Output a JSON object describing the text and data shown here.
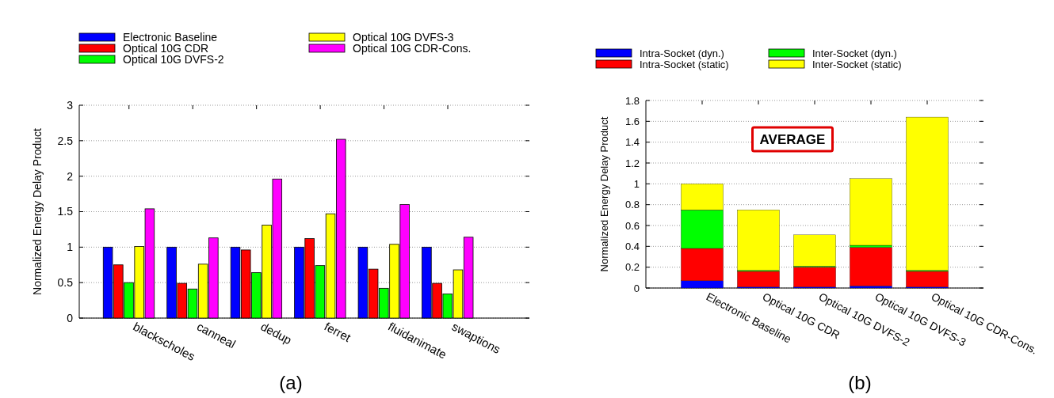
{
  "chart_data": [
    {
      "type": "bar",
      "ylabel": "Normalized Energy Delay Product",
      "categories": [
        "blackscholes",
        "canneal",
        "dedup",
        "ferret",
        "fluidanimate",
        "swaptions"
      ],
      "series": [
        {
          "name": "Electronic Baseline",
          "color": "#0000ff",
          "values": [
            1,
            1,
            1,
            1,
            1,
            1
          ]
        },
        {
          "name": "Optical 10G CDR",
          "color": "#ff0000",
          "values": [
            0.75,
            0.49,
            0.96,
            1.12,
            0.69,
            0.49
          ]
        },
        {
          "name": "Optical 10G DVFS-2",
          "color": "#00ff00",
          "values": [
            0.5,
            0.41,
            0.64,
            0.74,
            0.42,
            0.34
          ]
        },
        {
          "name": "Optical 10G DVFS-3",
          "color": "#ffff00",
          "values": [
            1.01,
            0.76,
            1.31,
            1.47,
            1.04,
            0.68
          ]
        },
        {
          "name": "Optical 10G CDR-Cons.",
          "color": "#ff00ff",
          "values": [
            1.54,
            1.13,
            1.96,
            2.52,
            1.6,
            1.14
          ]
        }
      ],
      "ylim": [
        0,
        3
      ],
      "yticks": [
        0,
        0.5,
        1,
        1.5,
        2,
        2.5,
        3
      ],
      "grid": "y",
      "legend": "top",
      "annotations": [
        "(a)"
      ]
    },
    {
      "type": "bar",
      "stacked": true,
      "ylabel": "Normalized Energy Delay Product",
      "categories": [
        "Electronic Baseline",
        "Optical 10G CDR",
        "Optical 10G DVFS-2",
        "Optical 10G DVFS-3",
        "Optical 10G CDR-Cons."
      ],
      "series": [
        {
          "name": "Intra-Socket (dyn.)",
          "color": "#0000ff",
          "values": [
            0.07,
            0.01,
            0.01,
            0.02,
            0.01
          ]
        },
        {
          "name": "Intra-Socket (static)",
          "color": "#ff0000",
          "values": [
            0.31,
            0.15,
            0.19,
            0.37,
            0.15
          ]
        },
        {
          "name": "Inter-Socket (dyn.)",
          "color": "#00ff00",
          "values": [
            0.37,
            0.01,
            0.01,
            0.02,
            0.01
          ]
        },
        {
          "name": "Inter-Socket (static)",
          "color": "#ffff00",
          "values": [
            0.25,
            0.58,
            0.3,
            0.64,
            1.47
          ]
        }
      ],
      "ylim": [
        0,
        1.8
      ],
      "yticks": [
        0,
        0.2,
        0.4,
        0.6,
        0.8,
        1,
        1.2,
        1.4,
        1.6,
        1.8
      ],
      "grid": "y",
      "legend": "top",
      "annotations": [
        "AVERAGE",
        "(b)"
      ]
    }
  ]
}
